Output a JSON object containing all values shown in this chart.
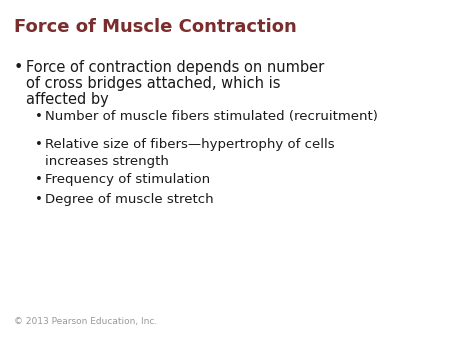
{
  "title": "Force of Muscle Contraction",
  "title_color": "#7B2D2D",
  "background_color": "#FFFFFF",
  "bullet1_line1": "Force of contraction depends on number",
  "bullet1_line2": "of cross bridges attached, which is",
  "bullet1_line3": "affected by",
  "bullet1_color": "#1a1a1a",
  "sub_bullets": [
    "Number of muscle fibers stimulated (recruitment)",
    "Relative size of fibers—hypertrophy of cells\nincreases strength",
    "Frequency of stimulation",
    "Degree of muscle stretch"
  ],
  "sub_bullet_color": "#1a1a1a",
  "copyright": "© 2013 Pearson Education, Inc.",
  "copyright_color": "#999999",
  "title_fontsize": 13,
  "bullet_fontsize": 10.5,
  "sub_bullet_fontsize": 9.5,
  "copyright_fontsize": 6.5
}
